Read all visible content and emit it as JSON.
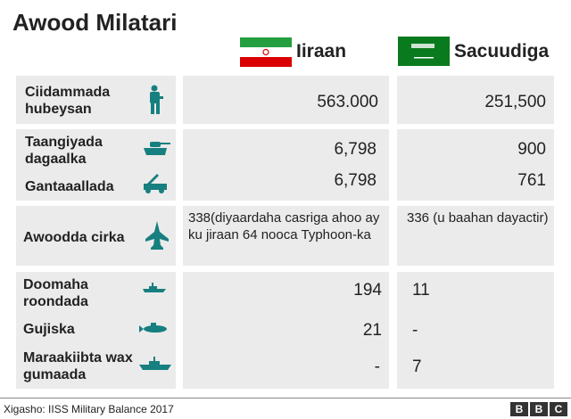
{
  "title": "Awood Milatari",
  "countries": [
    {
      "name": "Iiraan"
    },
    {
      "name": "Sacuudiga"
    }
  ],
  "rows": [
    {
      "label": "Ciidammada hubeysan",
      "icon": "soldier-icon",
      "iran": "563.000",
      "saudi": "251,500"
    },
    {
      "label": "Taangiyada dagaalka",
      "icon": "tank-icon",
      "iran": "6,798",
      "saudi": "900"
    },
    {
      "label": "Gantaaallada",
      "icon": "missile-launcher-icon",
      "iran": "6,798",
      "saudi": "761"
    },
    {
      "label": "Awoodda cirka",
      "icon": "fighter-jet-icon",
      "iran": "338(diyaardaha casriga ahoo ay ku jiraan 64 nooca Typhoon-ka",
      "saudi": "336 (u baahan dayactir)"
    },
    {
      "label": "Doomaha roondada",
      "icon": "patrol-boat-icon",
      "iran": "194",
      "saudi": "11"
    },
    {
      "label": "Gujiska",
      "icon": "submarine-icon",
      "iran": "21",
      "saudi": "-"
    },
    {
      "label": "Maraakiibta wax gumaada",
      "icon": "warship-icon",
      "iran": "-",
      "saudi": "7"
    }
  ],
  "footer": {
    "source": "Xigasho: IISS Military Balance 2017",
    "logo": [
      "B",
      "B",
      "C"
    ]
  },
  "colors": {
    "icon": "#177f7f",
    "cell": "#ebebeb"
  }
}
